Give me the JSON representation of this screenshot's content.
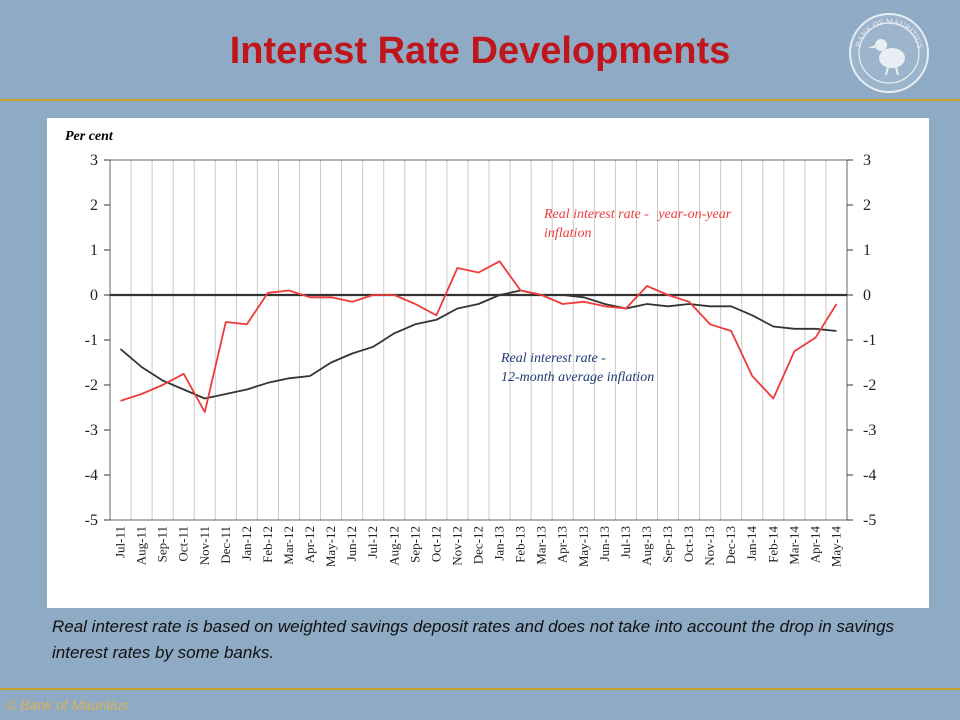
{
  "header": {
    "title": "Interest Rate Developments"
  },
  "logo": {
    "text": "BANK OF MAURITIUS",
    "icon": "dodo-bird-seal"
  },
  "colors": {
    "title": "#c0151b",
    "background": "#8eaac4",
    "rule": "#c9a227",
    "yoy": "#ee3b3b",
    "avg": "#333333",
    "avg_label": "#1f3b77"
  },
  "chart_data": {
    "type": "line",
    "ylabel": "Per cent",
    "ylim": [
      -5,
      3
    ],
    "yticks": [
      3,
      2,
      1,
      0,
      -1,
      -2,
      -3,
      -4,
      -5
    ],
    "grid": true,
    "categories": [
      "Jul-11",
      "Aug-11",
      "Sep-11",
      "Oct-11",
      "Nov-11",
      "Dec-11",
      "Jan-12",
      "Feb-12",
      "Mar-12",
      "Apr-12",
      "May-12",
      "Jun-12",
      "Jul-12",
      "Aug-12",
      "Sep-12",
      "Oct-12",
      "Nov-12",
      "Dec-12",
      "Jan-13",
      "Feb-13",
      "Mar-13",
      "Apr-13",
      "May-13",
      "Jun-13",
      "Jul-13",
      "Aug-13",
      "Sep-13",
      "Oct-13",
      "Nov-13",
      "Dec-13",
      "Jan-14",
      "Feb-14",
      "Mar-14",
      "Apr-14",
      "May-14"
    ],
    "series": [
      {
        "name": "Real interest rate - year-on-year inflation",
        "color": "#ee3b3b",
        "values": [
          -2.35,
          -2.2,
          -2.0,
          -1.75,
          -2.6,
          -0.6,
          -0.65,
          0.05,
          0.1,
          -0.05,
          -0.05,
          -0.15,
          0.0,
          0.0,
          -0.2,
          -0.45,
          0.6,
          0.5,
          0.75,
          0.1,
          0.0,
          -0.2,
          -0.15,
          -0.25,
          -0.3,
          0.2,
          0.0,
          -0.15,
          -0.65,
          -0.8,
          -1.8,
          -2.3,
          -1.25,
          -0.95,
          -0.2
        ]
      },
      {
        "name": "Real interest rate - 12-month average inflation",
        "color": "#333333",
        "values": [
          -1.2,
          -1.6,
          -1.9,
          -2.1,
          -2.3,
          -2.2,
          -2.1,
          -1.95,
          -1.85,
          -1.8,
          -1.5,
          -1.3,
          -1.15,
          -0.85,
          -0.65,
          -0.55,
          -0.3,
          -0.2,
          0.0,
          0.1,
          0.0,
          0.0,
          -0.05,
          -0.2,
          -0.3,
          -0.2,
          -0.25,
          -0.2,
          -0.25,
          -0.25,
          -0.45,
          -0.7,
          -0.75,
          -0.75,
          -0.8
        ]
      }
    ],
    "annotations": {
      "yoy": {
        "prefix": "Real interest rate - ",
        "suffix": "year-on-year",
        "line2": "inflation"
      },
      "avg": {
        "line1": "Real interest rate -",
        "line2": "12-month average inflation"
      }
    }
  },
  "caption": "Real interest rate is based on weighted savings deposit rates and does not take into account the drop in savings interest rates by some banks.",
  "footer": {
    "text": "© Bank of Mauritius"
  }
}
